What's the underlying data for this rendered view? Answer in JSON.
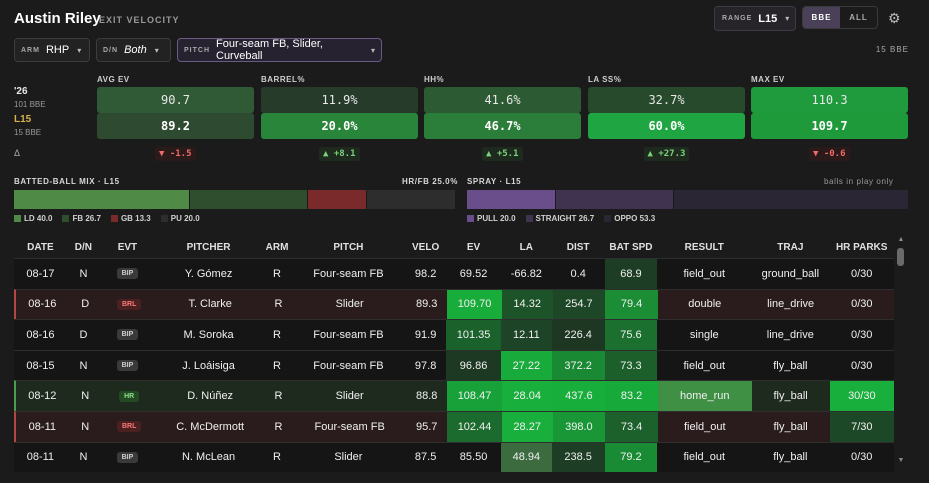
{
  "header": {
    "player": "Austin Riley",
    "subtitle": "EXIT VELOCITY",
    "range_label": "RANGE",
    "range_value": "L15",
    "toggle_bbe": "BBE",
    "toggle_all": "ALL",
    "bbe_count": "15 BBE"
  },
  "filters": {
    "arm_label": "ARM",
    "arm_value": "RHP",
    "dn_label": "D/N",
    "dn_value": "Both",
    "pitch_label": "PITCH",
    "pitch_value": "Four-seam FB, Slider, Curveball"
  },
  "comparison": {
    "row1_label": "'26",
    "row1_sub": "101 BBE",
    "row2_label": "L15",
    "row2_sub": "15 BBE",
    "delta_label": "Δ",
    "metrics": [
      {
        "name": "AVG EV",
        "season": "90.7",
        "recent": "89.2",
        "delta": "▼ -1.5",
        "dir": "neg",
        "c1": "#2f5a35",
        "c2": "#2e4a31"
      },
      {
        "name": "BARREL%",
        "season": "11.9%",
        "recent": "20.0%",
        "delta": "▲ +8.1",
        "dir": "pos",
        "c1": "#263b29",
        "c2": "#28853a"
      },
      {
        "name": "HH%",
        "season": "41.6%",
        "recent": "46.7%",
        "delta": "▲ +5.1",
        "dir": "pos",
        "c1": "#2c5a33",
        "c2": "#2b7e3a"
      },
      {
        "name": "LA SS%",
        "season": "32.7%",
        "recent": "60.0%",
        "delta": "▲ +27.3",
        "dir": "pos",
        "c1": "#264a2b",
        "c2": "#1fa541"
      },
      {
        "name": "MAX EV",
        "season": "110.3",
        "recent": "109.7",
        "delta": "▼ -0.6",
        "dir": "neg",
        "c1": "#1f9a3c",
        "c2": "#1e9a3b"
      }
    ]
  },
  "mix": {
    "title": "BATTED-BALL MIX · L15",
    "hrfb": "HR/FB 25.0%",
    "segments": [
      {
        "name": "LD",
        "pct": 40.0,
        "color": "#4f8a47"
      },
      {
        "name": "FB",
        "pct": 26.7,
        "color": "#2e4e2d"
      },
      {
        "name": "GB",
        "pct": 13.3,
        "color": "#7a2a2a"
      },
      {
        "name": "PU",
        "pct": 20.0,
        "color": "#2d2d2d"
      }
    ],
    "legend": [
      "LD 40.0",
      "FB 26.7",
      "GB 13.3",
      "PU 20.0"
    ]
  },
  "spray": {
    "title": "SPRAY · L15",
    "note": "balls in play only",
    "segments": [
      {
        "name": "PULL",
        "pct": 20.0,
        "color": "#6a4e8c"
      },
      {
        "name": "STRAIGHT",
        "pct": 26.7,
        "color": "#3f3350"
      },
      {
        "name": "OPPO",
        "pct": 53.3,
        "color": "#2b2633"
      }
    ],
    "legend": [
      "PULL 20.0",
      "STRAIGHT 26.7",
      "OPPO 53.3"
    ]
  },
  "table": {
    "columns": [
      "DATE",
      "D/N",
      "EVT",
      "PITCHER",
      "ARM",
      "PITCH",
      "VELO",
      "EV",
      "LA",
      "DIST",
      "BAT SPD",
      "RESULT",
      "TRAJ",
      "HR PARKS"
    ],
    "rows": [
      {
        "date": "08-17",
        "dn": "N",
        "evt": "BIP",
        "pitcher": "Y. Gómez",
        "arm": "R",
        "pitch": "Four-seam FB",
        "velo": "98.2",
        "ev": "69.52",
        "la": "-66.82",
        "dist": "0.4",
        "bat": "68.9",
        "result": "field_out",
        "traj": "ground_ball",
        "hr": "0/30"
      },
      {
        "date": "08-16",
        "dn": "D",
        "evt": "BRL",
        "pitcher": "T. Clarke",
        "arm": "R",
        "pitch": "Slider",
        "velo": "89.3",
        "ev": "109.70",
        "la": "14.32",
        "dist": "254.7",
        "bat": "79.4",
        "result": "double",
        "traj": "line_drive",
        "hr": "0/30"
      },
      {
        "date": "08-16",
        "dn": "D",
        "evt": "BIP",
        "pitcher": "M. Soroka",
        "arm": "R",
        "pitch": "Four-seam FB",
        "velo": "91.9",
        "ev": "101.35",
        "la": "12.11",
        "dist": "226.4",
        "bat": "75.6",
        "result": "single",
        "traj": "line_drive",
        "hr": "0/30"
      },
      {
        "date": "08-15",
        "dn": "N",
        "evt": "BIP",
        "pitcher": "J. Loáisiga",
        "arm": "R",
        "pitch": "Four-seam FB",
        "velo": "97.8",
        "ev": "96.86",
        "la": "27.22",
        "dist": "372.2",
        "bat": "73.3",
        "result": "field_out",
        "traj": "fly_ball",
        "hr": "0/30"
      },
      {
        "date": "08-12",
        "dn": "N",
        "evt": "HR",
        "pitcher": "D. Núñez",
        "arm": "R",
        "pitch": "Slider",
        "velo": "88.8",
        "ev": "108.47",
        "la": "28.04",
        "dist": "437.6",
        "bat": "83.2",
        "result": "home_run",
        "traj": "fly_ball",
        "hr": "30/30"
      },
      {
        "date": "08-11",
        "dn": "N",
        "evt": "BRL",
        "pitcher": "C. McDermott",
        "arm": "R",
        "pitch": "Four-seam FB",
        "velo": "95.7",
        "ev": "102.44",
        "la": "28.27",
        "dist": "398.0",
        "bat": "73.4",
        "result": "field_out",
        "traj": "fly_ball",
        "hr": "7/30"
      },
      {
        "date": "08-11",
        "dn": "N",
        "evt": "BIP",
        "pitcher": "N. McLean",
        "arm": "R",
        "pitch": "Slider",
        "velo": "87.5",
        "ev": "85.50",
        "la": "48.94",
        "dist": "238.5",
        "bat": "79.2",
        "result": "field_out",
        "traj": "fly_ball",
        "hr": "0/30"
      }
    ]
  }
}
